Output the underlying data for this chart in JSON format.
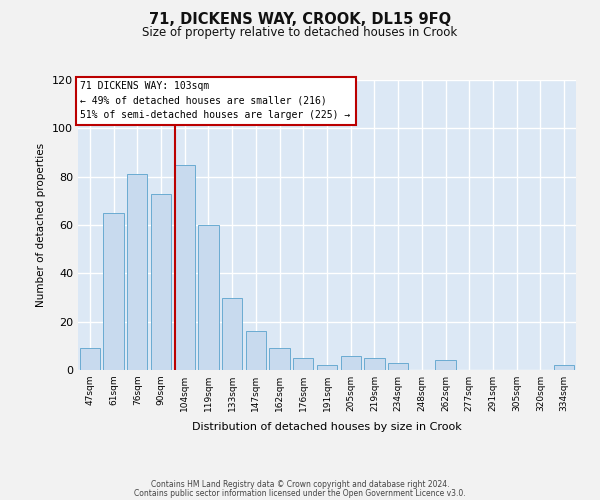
{
  "title": "71, DICKENS WAY, CROOK, DL15 9FQ",
  "subtitle": "Size of property relative to detached houses in Crook",
  "xlabel": "Distribution of detached houses by size in Crook",
  "ylabel": "Number of detached properties",
  "bar_color": "#c8daee",
  "bar_edge_color": "#6aabd2",
  "bg_color": "#dce8f5",
  "grid_color": "#ffffff",
  "categories": [
    "47sqm",
    "61sqm",
    "76sqm",
    "90sqm",
    "104sqm",
    "119sqm",
    "133sqm",
    "147sqm",
    "162sqm",
    "176sqm",
    "191sqm",
    "205sqm",
    "219sqm",
    "234sqm",
    "248sqm",
    "262sqm",
    "277sqm",
    "291sqm",
    "305sqm",
    "320sqm",
    "334sqm"
  ],
  "values": [
    9,
    65,
    81,
    73,
    85,
    60,
    30,
    16,
    9,
    5,
    2,
    6,
    5,
    3,
    0,
    4,
    0,
    0,
    0,
    0,
    2
  ],
  "property_bar_index": 4,
  "vline_color": "#bb0000",
  "annotation_title": "71 DICKENS WAY: 103sqm",
  "annotation_line1": "← 49% of detached houses are smaller (216)",
  "annotation_line2": "51% of semi-detached houses are larger (225) →",
  "annotation_box_facecolor": "#ffffff",
  "annotation_box_edgecolor": "#bb0000",
  "ylim_max": 120,
  "yticks": [
    0,
    20,
    40,
    60,
    80,
    100,
    120
  ],
  "footer1": "Contains HM Land Registry data © Crown copyright and database right 2024.",
  "footer2": "Contains public sector information licensed under the Open Government Licence v3.0."
}
